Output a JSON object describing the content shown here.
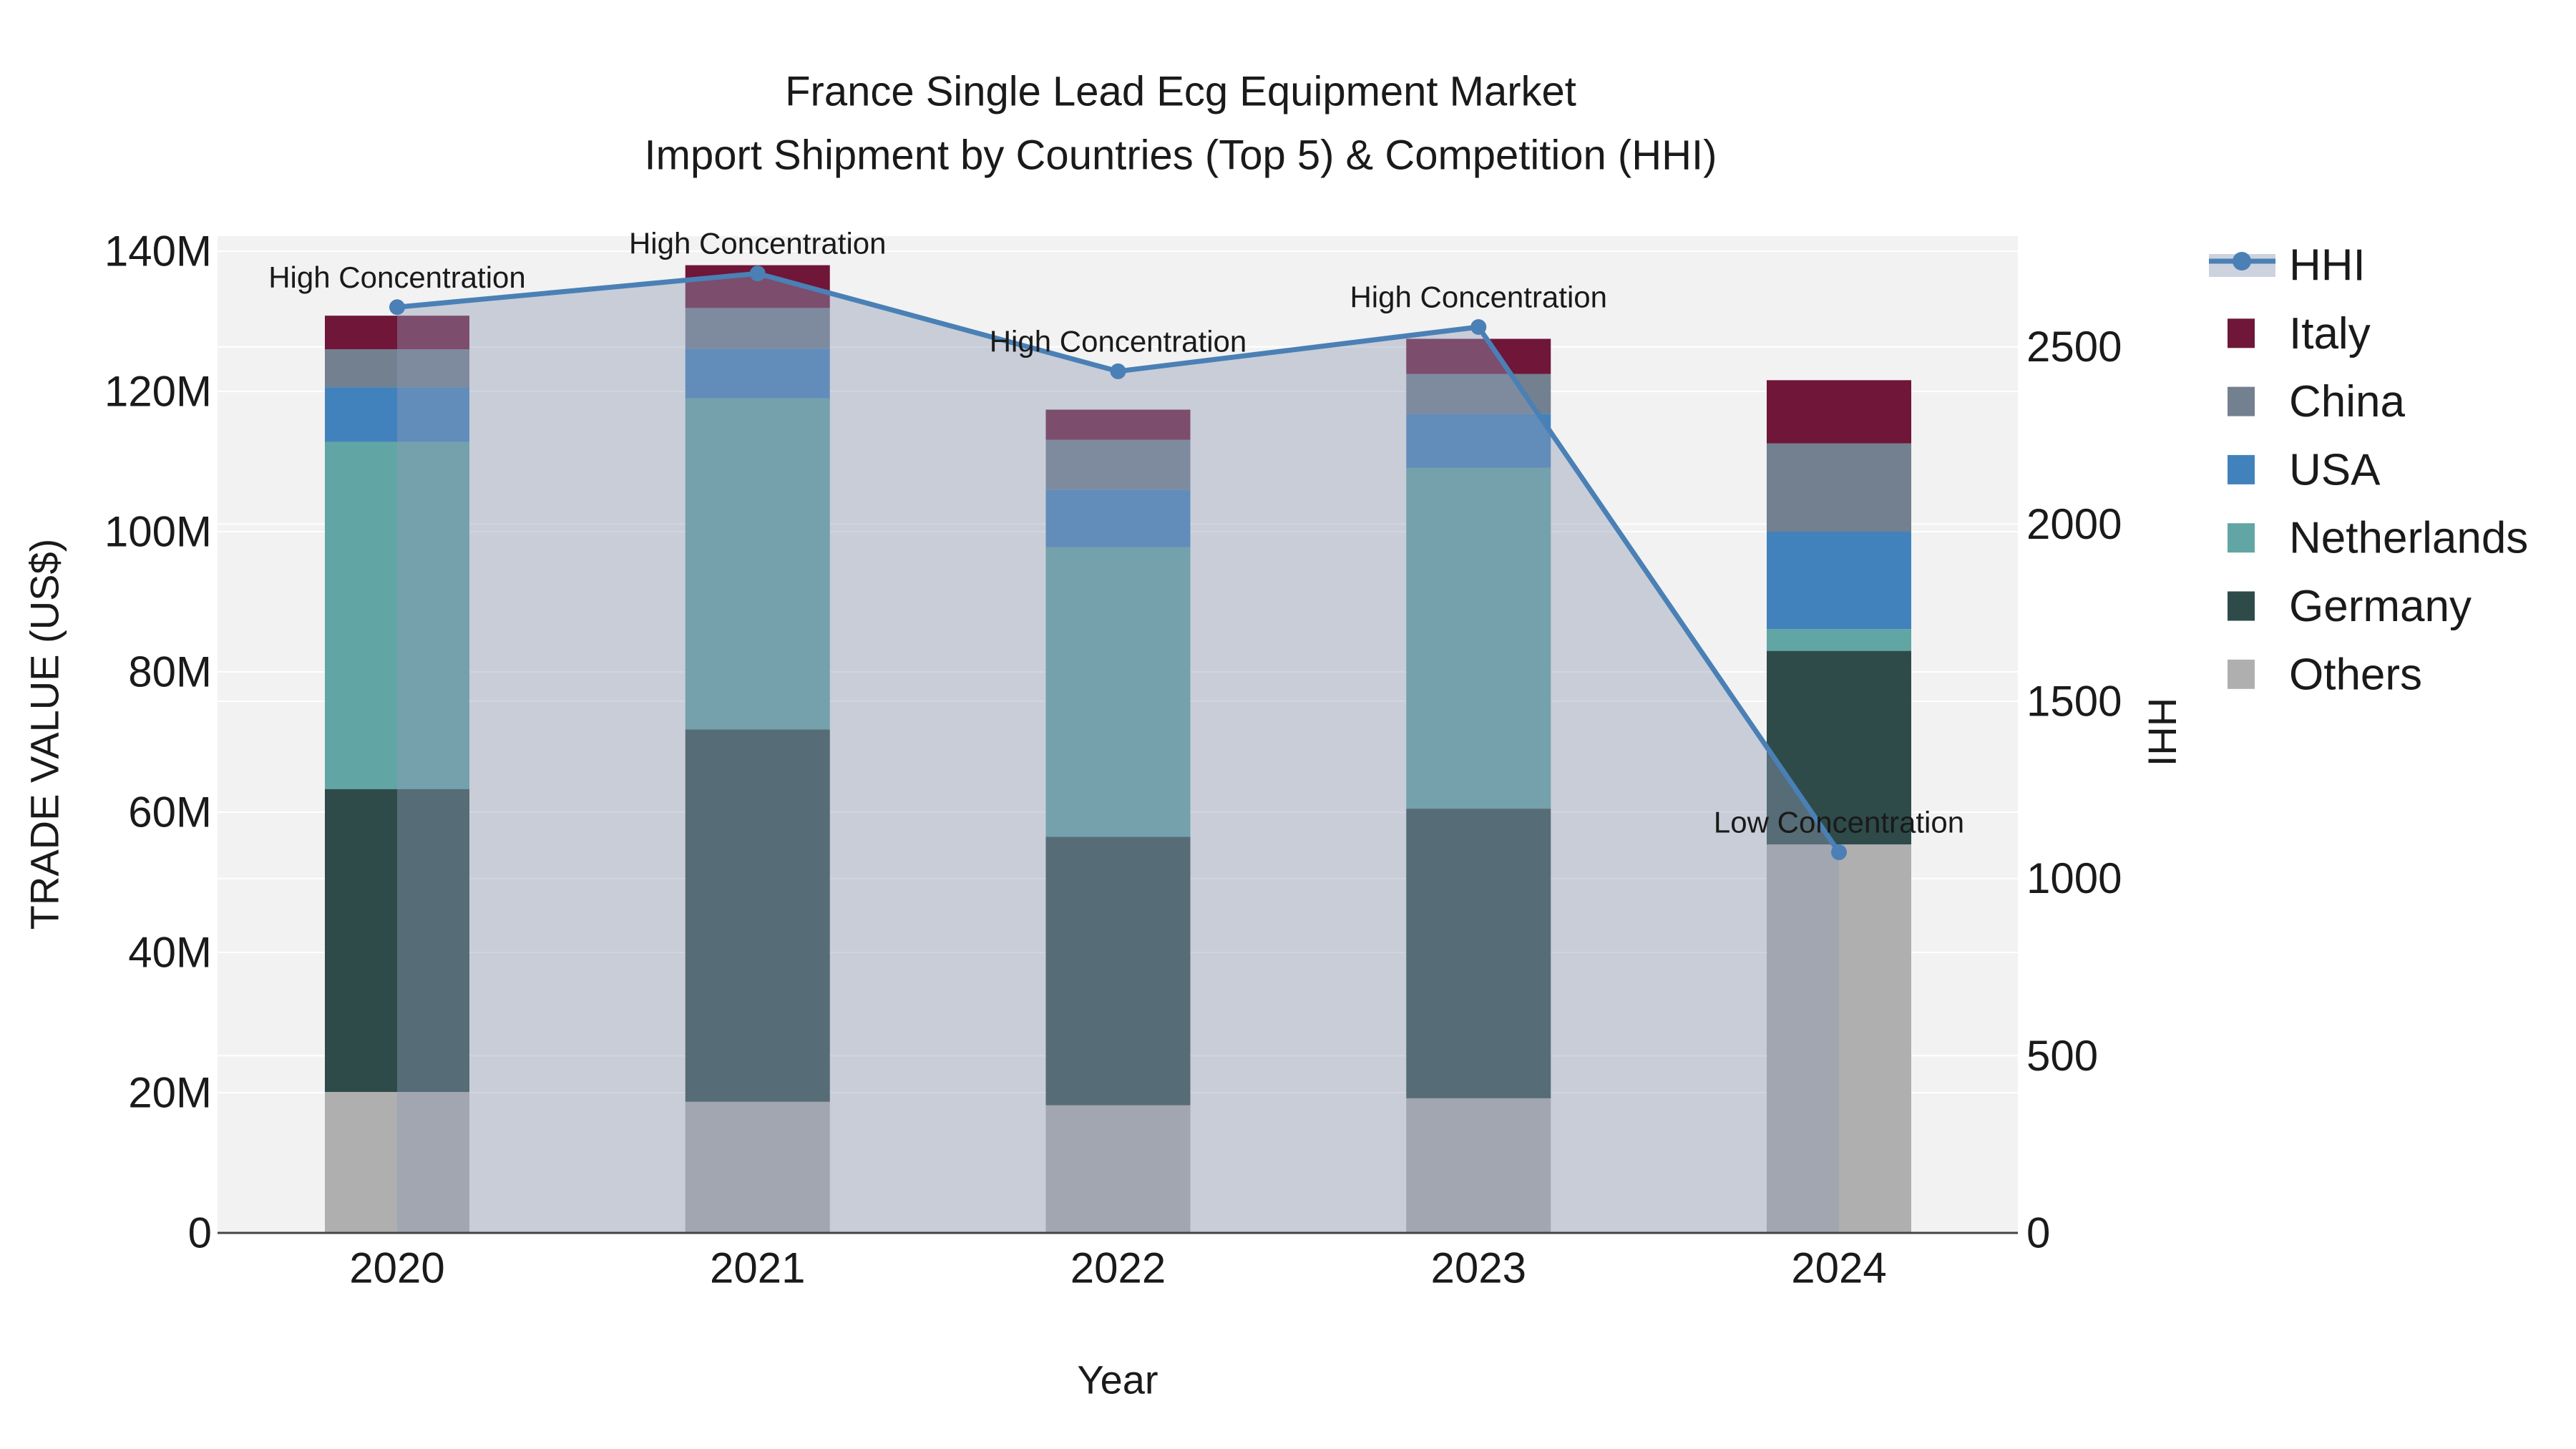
{
  "title": {
    "line1": "France Single Lead Ecg Equipment Market",
    "line2": "Import Shipment by Countries (Top 5) & Competition (HHI)"
  },
  "chart_data": {
    "type": "bar",
    "subtype": "stacked-bar-with-line",
    "x": [
      "2020",
      "2021",
      "2022",
      "2023",
      "2024"
    ],
    "xlabel": "Year",
    "ylabel_left": "TRADE VALUE (US$)",
    "ylabel_right": "HHI",
    "bar_value_unit": "millions USD",
    "series": [
      {
        "name": "Others",
        "color": "#AFAFAF",
        "values": [
          20.1,
          18.7,
          18.2,
          19.2,
          55.4
        ]
      },
      {
        "name": "Germany",
        "color": "#2E4B49",
        "values": [
          43.2,
          53.1,
          38.3,
          41.3,
          27.6
        ]
      },
      {
        "name": "Netherlands",
        "color": "#61A6A5",
        "values": [
          49.5,
          47.2,
          41.3,
          48.6,
          3.1
        ]
      },
      {
        "name": "USA",
        "color": "#4282BC",
        "values": [
          7.8,
          7.1,
          8.2,
          7.7,
          13.9
        ]
      },
      {
        "name": "China",
        "color": "#72808F",
        "values": [
          5.4,
          5.8,
          7.1,
          5.7,
          12.6
        ]
      },
      {
        "name": "Italy",
        "color": "#6F1639",
        "values": [
          4.8,
          6.1,
          4.3,
          5.0,
          9.0
        ]
      }
    ],
    "line": {
      "name": "HHI",
      "color": "#4A80B5",
      "fill_color": "#8F9CB5",
      "fill_opacity": 0.42,
      "values": [
        2612,
        2707,
        2431,
        2556,
        1074
      ]
    },
    "annotations": [
      {
        "x": "2020",
        "label": "High Concentration"
      },
      {
        "x": "2021",
        "label": "High Concentration"
      },
      {
        "x": "2022",
        "label": "High Concentration"
      },
      {
        "x": "2023",
        "label": "High Concentration"
      },
      {
        "x": "2024",
        "label": "Low Concentration"
      }
    ],
    "yaxis_left": {
      "tick_labels": [
        "0",
        "20M",
        "40M",
        "60M",
        "80M",
        "100M",
        "120M",
        "140M"
      ],
      "tick_values": [
        0,
        20,
        40,
        60,
        80,
        100,
        120,
        140
      ],
      "range": [
        0,
        140
      ]
    },
    "yaxis_right": {
      "tick_labels": [
        "0",
        "500",
        "1000",
        "1500",
        "2000",
        "2500"
      ],
      "tick_values": [
        0,
        500,
        1000,
        1500,
        2000,
        2500
      ],
      "range": [
        0,
        2770
      ]
    },
    "legend_order": [
      "HHI",
      "Italy",
      "China",
      "USA",
      "Netherlands",
      "Germany",
      "Others"
    ],
    "grid": true,
    "legend_position": "right",
    "plot_bg_color": "#F2F2F2",
    "axis_line_color": "#444444"
  }
}
